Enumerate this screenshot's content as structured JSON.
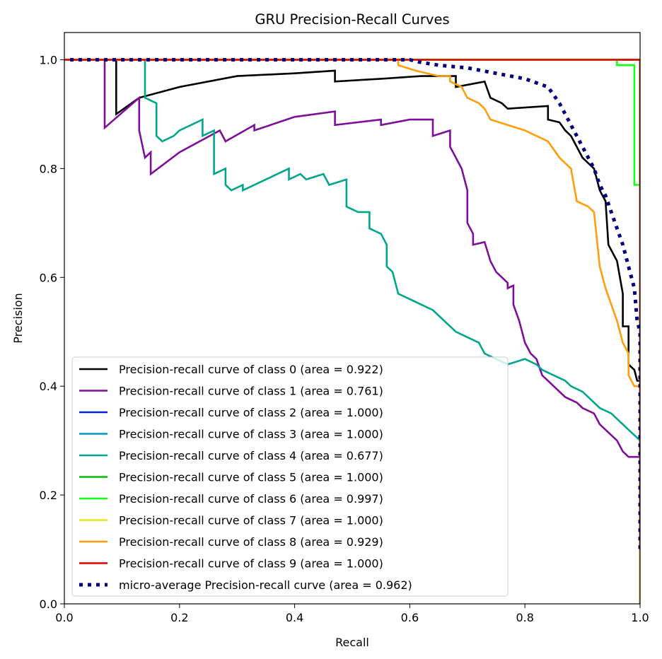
{
  "chart_data": {
    "type": "line",
    "title": "GRU Precision-Recall Curves",
    "xlabel": "Recall",
    "ylabel": "Precision",
    "xlim": [
      0.0,
      1.0
    ],
    "ylim": [
      0.0,
      1.05
    ],
    "xticks": [
      0.0,
      0.2,
      0.4,
      0.6,
      0.8,
      1.0
    ],
    "yticks": [
      0.0,
      0.2,
      0.4,
      0.6,
      0.8,
      1.0
    ],
    "xtick_labels": [
      "0.0",
      "0.2",
      "0.4",
      "0.6",
      "0.8",
      "1.0"
    ],
    "ytick_labels": [
      "0.0",
      "0.2",
      "0.4",
      "0.6",
      "0.8",
      "1.0"
    ],
    "grid": false,
    "legend_position": "lower-left",
    "series": [
      {
        "name": "Precision-recall curve of class 0 (area = 0.922)",
        "color": "#000000",
        "style": "solid",
        "points": [
          [
            0,
            1.0
          ],
          [
            0.09,
            1.0
          ],
          [
            0.09,
            0.9
          ],
          [
            0.13,
            0.93
          ],
          [
            0.2,
            0.95
          ],
          [
            0.3,
            0.97
          ],
          [
            0.4,
            0.975
          ],
          [
            0.47,
            0.98
          ],
          [
            0.47,
            0.96
          ],
          [
            0.55,
            0.965
          ],
          [
            0.62,
            0.97
          ],
          [
            0.68,
            0.97
          ],
          [
            0.68,
            0.95
          ],
          [
            0.73,
            0.96
          ],
          [
            0.74,
            0.93
          ],
          [
            0.76,
            0.92
          ],
          [
            0.77,
            0.91
          ],
          [
            0.84,
            0.915
          ],
          [
            0.84,
            0.89
          ],
          [
            0.86,
            0.885
          ],
          [
            0.87,
            0.87
          ],
          [
            0.88,
            0.86
          ],
          [
            0.89,
            0.84
          ],
          [
            0.9,
            0.82
          ],
          [
            0.91,
            0.81
          ],
          [
            0.92,
            0.8
          ],
          [
            0.93,
            0.76
          ],
          [
            0.94,
            0.74
          ],
          [
            0.945,
            0.66
          ],
          [
            0.96,
            0.63
          ],
          [
            0.97,
            0.57
          ],
          [
            0.97,
            0.51
          ],
          [
            0.98,
            0.51
          ],
          [
            0.98,
            0.44
          ],
          [
            0.99,
            0.43
          ],
          [
            0.995,
            0.41
          ],
          [
            1.0,
            0.41
          ],
          [
            1.0,
            0.0
          ]
        ]
      },
      {
        "name": "Precision-recall curve of class 1 (area = 0.761)",
        "color": "#7e0f9a",
        "style": "solid",
        "points": [
          [
            0,
            1.0
          ],
          [
            0.07,
            1.0
          ],
          [
            0.07,
            0.875
          ],
          [
            0.13,
            0.93
          ],
          [
            0.13,
            0.87
          ],
          [
            0.14,
            0.82
          ],
          [
            0.15,
            0.83
          ],
          [
            0.15,
            0.79
          ],
          [
            0.2,
            0.83
          ],
          [
            0.27,
            0.87
          ],
          [
            0.28,
            0.85
          ],
          [
            0.33,
            0.88
          ],
          [
            0.33,
            0.87
          ],
          [
            0.4,
            0.895
          ],
          [
            0.47,
            0.905
          ],
          [
            0.47,
            0.88
          ],
          [
            0.55,
            0.89
          ],
          [
            0.55,
            0.88
          ],
          [
            0.6,
            0.89
          ],
          [
            0.64,
            0.89
          ],
          [
            0.64,
            0.86
          ],
          [
            0.67,
            0.87
          ],
          [
            0.67,
            0.84
          ],
          [
            0.69,
            0.8
          ],
          [
            0.7,
            0.76
          ],
          [
            0.7,
            0.7
          ],
          [
            0.71,
            0.68
          ],
          [
            0.71,
            0.66
          ],
          [
            0.73,
            0.665
          ],
          [
            0.74,
            0.63
          ],
          [
            0.75,
            0.61
          ],
          [
            0.77,
            0.59
          ],
          [
            0.77,
            0.58
          ],
          [
            0.78,
            0.585
          ],
          [
            0.78,
            0.55
          ],
          [
            0.79,
            0.52
          ],
          [
            0.8,
            0.48
          ],
          [
            0.81,
            0.46
          ],
          [
            0.82,
            0.45
          ],
          [
            0.83,
            0.42
          ],
          [
            0.84,
            0.41
          ],
          [
            0.85,
            0.4
          ],
          [
            0.86,
            0.39
          ],
          [
            0.87,
            0.38
          ],
          [
            0.89,
            0.37
          ],
          [
            0.9,
            0.36
          ],
          [
            0.92,
            0.35
          ],
          [
            0.93,
            0.33
          ],
          [
            0.94,
            0.32
          ],
          [
            0.96,
            0.3
          ],
          [
            0.97,
            0.28
          ],
          [
            0.98,
            0.27
          ],
          [
            1.0,
            0.27
          ],
          [
            1.0,
            0.0
          ]
        ]
      },
      {
        "name": "Precision-recall curve of class 2 (area = 1.000)",
        "color": "#0022ce",
        "style": "solid",
        "points": [
          [
            0,
            1.0
          ],
          [
            1.0,
            1.0
          ],
          [
            1.0,
            0.1
          ]
        ]
      },
      {
        "name": "Precision-recall curve of class 3 (area = 1.000)",
        "color": "#0094cc",
        "style": "solid",
        "points": [
          [
            0,
            1.0
          ],
          [
            1.0,
            1.0
          ],
          [
            1.0,
            0.1
          ]
        ]
      },
      {
        "name": "Precision-recall curve of class 4 (area = 0.677)",
        "color": "#00a68c",
        "style": "solid",
        "points": [
          [
            0,
            1.0
          ],
          [
            0.14,
            1.0
          ],
          [
            0.14,
            0.93
          ],
          [
            0.16,
            0.92
          ],
          [
            0.16,
            0.86
          ],
          [
            0.17,
            0.85
          ],
          [
            0.19,
            0.86
          ],
          [
            0.2,
            0.87
          ],
          [
            0.24,
            0.89
          ],
          [
            0.24,
            0.86
          ],
          [
            0.26,
            0.87
          ],
          [
            0.26,
            0.79
          ],
          [
            0.28,
            0.8
          ],
          [
            0.28,
            0.77
          ],
          [
            0.29,
            0.76
          ],
          [
            0.31,
            0.77
          ],
          [
            0.31,
            0.76
          ],
          [
            0.37,
            0.79
          ],
          [
            0.39,
            0.8
          ],
          [
            0.39,
            0.78
          ],
          [
            0.41,
            0.79
          ],
          [
            0.42,
            0.78
          ],
          [
            0.45,
            0.79
          ],
          [
            0.46,
            0.77
          ],
          [
            0.49,
            0.78
          ],
          [
            0.49,
            0.73
          ],
          [
            0.51,
            0.72
          ],
          [
            0.53,
            0.72
          ],
          [
            0.53,
            0.69
          ],
          [
            0.55,
            0.68
          ],
          [
            0.56,
            0.66
          ],
          [
            0.56,
            0.62
          ],
          [
            0.57,
            0.61
          ],
          [
            0.58,
            0.57
          ],
          [
            0.6,
            0.56
          ],
          [
            0.62,
            0.55
          ],
          [
            0.64,
            0.54
          ],
          [
            0.65,
            0.53
          ],
          [
            0.67,
            0.51
          ],
          [
            0.68,
            0.5
          ],
          [
            0.7,
            0.49
          ],
          [
            0.72,
            0.48
          ],
          [
            0.73,
            0.46
          ],
          [
            0.75,
            0.45
          ],
          [
            0.77,
            0.44
          ],
          [
            0.8,
            0.45
          ],
          [
            0.82,
            0.44
          ],
          [
            0.83,
            0.43
          ],
          [
            0.85,
            0.42
          ],
          [
            0.87,
            0.41
          ],
          [
            0.88,
            0.4
          ],
          [
            0.9,
            0.39
          ],
          [
            0.91,
            0.38
          ],
          [
            0.93,
            0.36
          ],
          [
            0.95,
            0.35
          ],
          [
            0.96,
            0.34
          ],
          [
            0.97,
            0.33
          ],
          [
            0.98,
            0.32
          ],
          [
            0.99,
            0.31
          ],
          [
            1.0,
            0.3
          ],
          [
            1.0,
            0.0
          ]
        ]
      },
      {
        "name": "Precision-recall curve of class 5 (area = 1.000)",
        "color": "#00c000",
        "style": "solid",
        "points": [
          [
            0,
            1.0
          ],
          [
            1.0,
            1.0
          ],
          [
            1.0,
            0.1
          ]
        ]
      },
      {
        "name": "Precision-recall curve of class 6 (area = 0.997)",
        "color": "#16ff16",
        "style": "solid",
        "points": [
          [
            0,
            1.0
          ],
          [
            0.96,
            1.0
          ],
          [
            0.96,
            0.99
          ],
          [
            0.99,
            0.99
          ],
          [
            0.99,
            0.77
          ],
          [
            1.0,
            0.77
          ],
          [
            1.0,
            0.1
          ]
        ]
      },
      {
        "name": "Precision-recall curve of class 7 (area = 1.000)",
        "color": "#e6e61e",
        "style": "solid",
        "points": [
          [
            0,
            1.0
          ],
          [
            1.0,
            1.0
          ],
          [
            1.0,
            0.1
          ]
        ]
      },
      {
        "name": "Precision-recall curve of class 8 (area = 0.929)",
        "color": "#ff9d0a",
        "style": "solid",
        "points": [
          [
            0,
            1.0
          ],
          [
            0.58,
            1.0
          ],
          [
            0.58,
            0.99
          ],
          [
            0.61,
            0.98
          ],
          [
            0.65,
            0.97
          ],
          [
            0.67,
            0.97
          ],
          [
            0.67,
            0.96
          ],
          [
            0.69,
            0.95
          ],
          [
            0.7,
            0.93
          ],
          [
            0.72,
            0.92
          ],
          [
            0.73,
            0.91
          ],
          [
            0.74,
            0.89
          ],
          [
            0.77,
            0.88
          ],
          [
            0.8,
            0.87
          ],
          [
            0.82,
            0.86
          ],
          [
            0.84,
            0.85
          ],
          [
            0.86,
            0.82
          ],
          [
            0.88,
            0.8
          ],
          [
            0.89,
            0.74
          ],
          [
            0.91,
            0.73
          ],
          [
            0.92,
            0.72
          ],
          [
            0.93,
            0.62
          ],
          [
            0.94,
            0.58
          ],
          [
            0.95,
            0.55
          ],
          [
            0.96,
            0.52
          ],
          [
            0.97,
            0.48
          ],
          [
            0.98,
            0.46
          ],
          [
            0.98,
            0.42
          ],
          [
            0.99,
            0.4
          ],
          [
            1.0,
            0.4
          ],
          [
            1.0,
            0.0
          ]
        ]
      },
      {
        "name": "Precision-recall curve of class 9 (area = 1.000)",
        "color": "#e00000",
        "style": "solid",
        "points": [
          [
            0,
            1.0
          ],
          [
            1.0,
            1.0
          ],
          [
            1.0,
            0.1
          ]
        ]
      },
      {
        "name": "micro-average Precision-recall curve (area = 0.962)",
        "color": "#000080",
        "style": "dotted",
        "points": [
          [
            0.01,
            1.0
          ],
          [
            0.5,
            1.0
          ],
          [
            0.6,
            1.0
          ],
          [
            0.62,
            0.995
          ],
          [
            0.65,
            0.99
          ],
          [
            0.7,
            0.985
          ],
          [
            0.75,
            0.975
          ],
          [
            0.8,
            0.965
          ],
          [
            0.84,
            0.95
          ],
          [
            0.86,
            0.92
          ],
          [
            0.88,
            0.88
          ],
          [
            0.9,
            0.84
          ],
          [
            0.91,
            0.82
          ],
          [
            0.92,
            0.8
          ],
          [
            0.93,
            0.77
          ],
          [
            0.94,
            0.75
          ],
          [
            0.95,
            0.72
          ],
          [
            0.96,
            0.69
          ],
          [
            0.97,
            0.66
          ],
          [
            0.98,
            0.62
          ],
          [
            0.99,
            0.58
          ],
          [
            0.995,
            0.52
          ],
          [
            1.0,
            0.5
          ],
          [
            1.0,
            0.1
          ]
        ]
      }
    ]
  }
}
